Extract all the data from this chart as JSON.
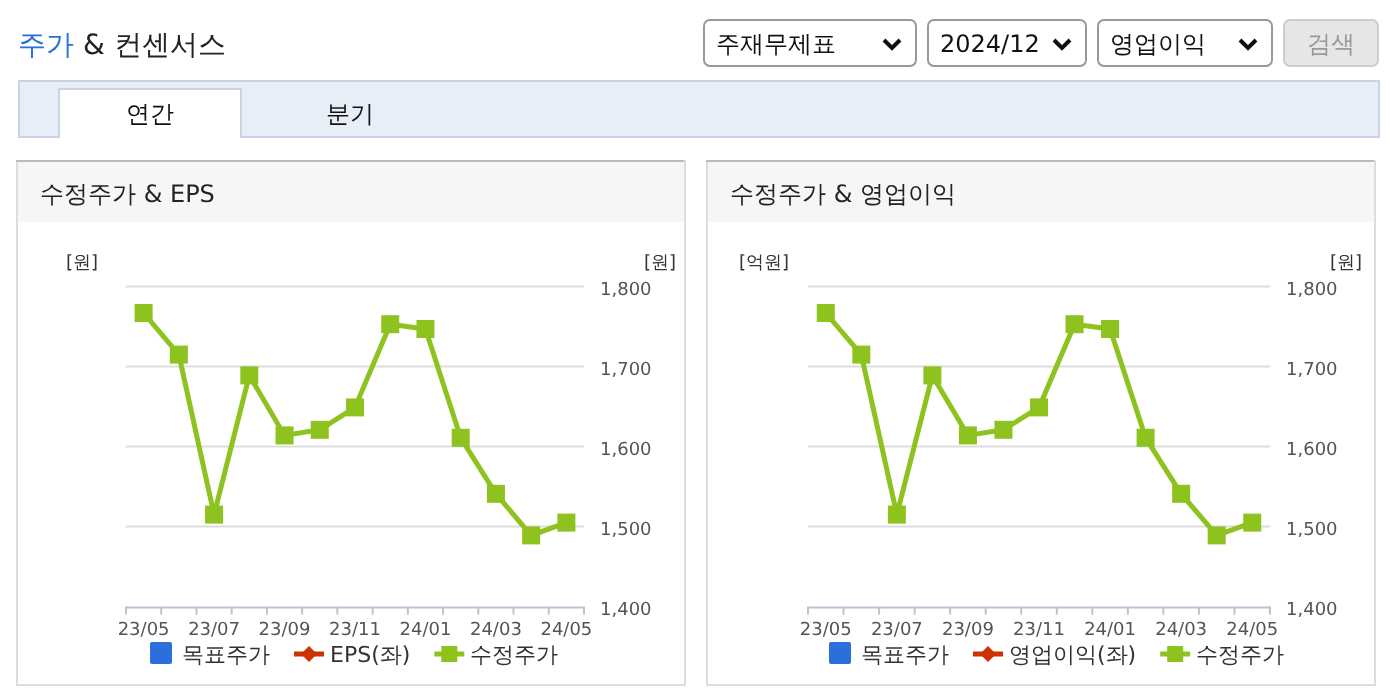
{
  "chart_data": [
    {
      "type": "other",
      "title": "주가 & 컨센서스",
      "annotations": [
        "주재무제표",
        "2024/12",
        "영업이익",
        "검색",
        "연간",
        "분기"
      ]
    },
    {
      "type": "line",
      "title": "수정주가 & EPS",
      "ylabel": "[원]",
      "y2label": "[원]",
      "categories": [
        "23/05",
        null,
        "23/07",
        null,
        "23/09",
        null,
        "23/11",
        null,
        "24/01",
        null,
        "24/03",
        null,
        "24/05"
      ],
      "series": [
        {
          "name": "목표주가",
          "type": "bar",
          "color": "#2a6fdb",
          "values": [
            null,
            null,
            null,
            null,
            null,
            null,
            null,
            null,
            null,
            null,
            null,
            null,
            null
          ]
        },
        {
          "name": "EPS(좌)",
          "type": "line",
          "marker": "diamond",
          "color": "#cc3300",
          "values": [
            null,
            null,
            null,
            null,
            null,
            null,
            null,
            null,
            null,
            null,
            null,
            null,
            null
          ]
        },
        {
          "name": "수정주가",
          "type": "line",
          "marker": "square",
          "axis": "y2",
          "color": "#8dc21f",
          "values": [
            1767,
            1715,
            1515,
            1689,
            1614,
            1621,
            1649,
            1753,
            1747,
            1611,
            1541,
            1489,
            1505
          ]
        }
      ],
      "y2lim": [
        1400,
        1800
      ],
      "y2ticks": [
        {
          "value": 1400,
          "label": "1,400"
        },
        {
          "value": 1500,
          "label": "1,500"
        },
        {
          "value": 1600,
          "label": "1,600"
        },
        {
          "value": 1700,
          "label": "1,700"
        },
        {
          "value": 1800,
          "label": "1,800"
        }
      ],
      "grid": "y",
      "legend": "bottom"
    },
    {
      "type": "line",
      "title": "수정주가 & 영업이익",
      "ylabel": "[억원]",
      "y2label": "[원]",
      "categories": [
        "23/05",
        null,
        "23/07",
        null,
        "23/09",
        null,
        "23/11",
        null,
        "24/01",
        null,
        "24/03",
        null,
        "24/05"
      ],
      "series": [
        {
          "name": "목표주가",
          "type": "bar",
          "color": "#2a6fdb",
          "values": [
            null,
            null,
            null,
            null,
            null,
            null,
            null,
            null,
            null,
            null,
            null,
            null,
            null
          ]
        },
        {
          "name": "영업이익(좌)",
          "type": "line",
          "marker": "diamond",
          "color": "#cc3300",
          "values": [
            null,
            null,
            null,
            null,
            null,
            null,
            null,
            null,
            null,
            null,
            null,
            null,
            null
          ]
        },
        {
          "name": "수정주가",
          "type": "line",
          "marker": "square",
          "axis": "y2",
          "color": "#8dc21f",
          "values": [
            1767,
            1715,
            1515,
            1689,
            1614,
            1621,
            1649,
            1753,
            1747,
            1611,
            1541,
            1489,
            1505
          ]
        }
      ],
      "y2lim": [
        1400,
        1800
      ],
      "y2ticks": [
        {
          "value": 1400,
          "label": "1,400"
        },
        {
          "value": 1500,
          "label": "1,500"
        },
        {
          "value": 1600,
          "label": "1,600"
        },
        {
          "value": 1700,
          "label": "1,700"
        },
        {
          "value": 1800,
          "label": "1,800"
        }
      ],
      "grid": "y",
      "legend": "bottom"
    }
  ]
}
